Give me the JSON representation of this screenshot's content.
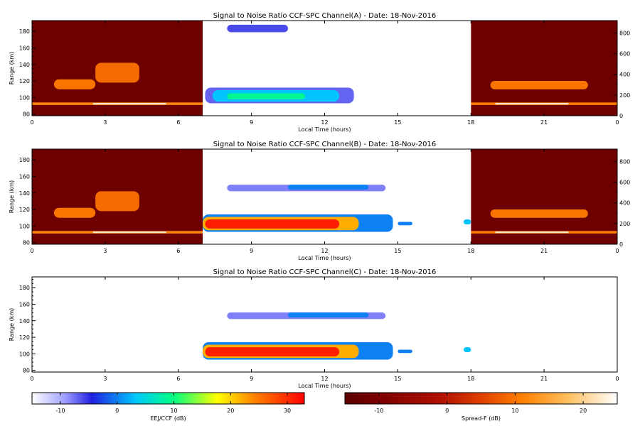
{
  "chart_data": {
    "type": "heatmap",
    "panels": [
      {
        "id": "a",
        "title": "Signal to Noise Ratio CCF-SPC Channel(A) - Date: 18-Nov-2016",
        "xlabel": "Local Time (hours)",
        "ylabel": "Range (km)",
        "x_ticks": [
          "0",
          "3",
          "6",
          "9",
          "12",
          "15",
          "18",
          "21",
          "0"
        ],
        "y_ticks": [
          "80",
          "100",
          "120",
          "140",
          "160",
          "180"
        ],
        "right_ticks": [
          "0",
          "200",
          "400",
          "600",
          "800"
        ],
        "xlim": [
          0,
          24
        ],
        "ylim": [
          78,
          193
        ],
        "right_ylim": [
          0,
          920
        ],
        "night_colorbar": "Spread-F (dB)",
        "features": [
          {
            "name": "night-base",
            "t0": 0,
            "t1": 7,
            "r0": 78,
            "r1": 193,
            "v": -12,
            "scale": "spreadf"
          },
          {
            "name": "night-base",
            "t0": 18,
            "t1": 24,
            "r0": 78,
            "r1": 193,
            "v": -12,
            "scale": "spreadf"
          },
          {
            "name": "night-band",
            "t0": 0,
            "t1": 7,
            "r0": 91,
            "r1": 94,
            "v": 12,
            "scale": "spreadf"
          },
          {
            "name": "night-band-core",
            "t0": 2.5,
            "t1": 5.5,
            "r0": 91.5,
            "r1": 93.5,
            "v": 22,
            "scale": "spreadf"
          },
          {
            "name": "night-band",
            "t0": 18,
            "t1": 24,
            "r0": 91,
            "r1": 94,
            "v": 11,
            "scale": "spreadf"
          },
          {
            "name": "night-band-core",
            "t0": 19,
            "t1": 22,
            "r0": 91.5,
            "r1": 93.5,
            "v": 22,
            "scale": "spreadf"
          },
          {
            "name": "spread-f-patch",
            "t0": 0.9,
            "t1": 2.6,
            "r0": 110,
            "r1": 122,
            "v": 10,
            "scale": "spreadf"
          },
          {
            "name": "spread-f-patch",
            "t0": 2.6,
            "t1": 4.4,
            "r0": 118,
            "r1": 142,
            "v": 9,
            "scale": "spreadf"
          },
          {
            "name": "spread-f-patch",
            "t0": 18.8,
            "t1": 22.8,
            "r0": 110,
            "r1": 120,
            "v": 10,
            "scale": "spreadf"
          },
          {
            "name": "day-bg",
            "t0": 7,
            "t1": 18,
            "r0": 78,
            "r1": 193,
            "v": -20,
            "scale": "eej"
          },
          {
            "name": "echo-150",
            "t0": 8.0,
            "t1": 10.5,
            "r0": 179,
            "r1": 188,
            "v": -6,
            "scale": "eej"
          },
          {
            "name": "eej-halo",
            "t0": 7.1,
            "t1": 13.2,
            "r0": 93,
            "r1": 112,
            "v": -7,
            "scale": "eej"
          },
          {
            "name": "eej-mid",
            "t0": 7.4,
            "t1": 12.6,
            "r0": 95,
            "r1": 109,
            "v": 3,
            "scale": "eej"
          },
          {
            "name": "eej-core",
            "t0": 8.0,
            "t1": 11.2,
            "r0": 98,
            "r1": 105,
            "v": 9,
            "scale": "eej"
          }
        ]
      },
      {
        "id": "b",
        "title": "Signal to Noise Ratio CCF-SPC Channel(B) - Date: 18-Nov-2016",
        "xlabel": "Local Time (hours)",
        "ylabel": "Range (km)",
        "x_ticks": [
          "0",
          "3",
          "6",
          "9",
          "12",
          "15",
          "18",
          "21",
          "0"
        ],
        "y_ticks": [
          "80",
          "100",
          "120",
          "140",
          "160",
          "180"
        ],
        "right_ticks": [
          "0",
          "200",
          "400",
          "600",
          "800"
        ],
        "xlim": [
          0,
          24
        ],
        "ylim": [
          78,
          193
        ],
        "right_ylim": [
          0,
          920
        ],
        "night_colorbar": "Spread-F (dB)",
        "features": [
          {
            "name": "night-base",
            "t0": 0,
            "t1": 7,
            "r0": 78,
            "r1": 193,
            "v": -12,
            "scale": "spreadf"
          },
          {
            "name": "night-base",
            "t0": 18,
            "t1": 24,
            "r0": 78,
            "r1": 193,
            "v": -12,
            "scale": "spreadf"
          },
          {
            "name": "night-band",
            "t0": 0,
            "t1": 7,
            "r0": 91,
            "r1": 94,
            "v": 12,
            "scale": "spreadf"
          },
          {
            "name": "night-band-core",
            "t0": 2.5,
            "t1": 5.5,
            "r0": 91.5,
            "r1": 93.5,
            "v": 22,
            "scale": "spreadf"
          },
          {
            "name": "night-band",
            "t0": 18,
            "t1": 24,
            "r0": 91,
            "r1": 94,
            "v": 11,
            "scale": "spreadf"
          },
          {
            "name": "night-band-core",
            "t0": 19,
            "t1": 22,
            "r0": 91.5,
            "r1": 93.5,
            "v": 22,
            "scale": "spreadf"
          },
          {
            "name": "spread-f-patch",
            "t0": 0.9,
            "t1": 2.6,
            "r0": 110,
            "r1": 122,
            "v": 10,
            "scale": "spreadf"
          },
          {
            "name": "spread-f-patch",
            "t0": 2.6,
            "t1": 4.4,
            "r0": 118,
            "r1": 142,
            "v": 9,
            "scale": "spreadf"
          },
          {
            "name": "spread-f-patch",
            "t0": 18.8,
            "t1": 22.8,
            "r0": 110,
            "r1": 120,
            "v": 10,
            "scale": "spreadf"
          },
          {
            "name": "day-bg",
            "t0": 7,
            "t1": 18,
            "r0": 78,
            "r1": 193,
            "v": -20,
            "scale": "eej"
          },
          {
            "name": "echo-150",
            "t0": 8.0,
            "t1": 14.5,
            "r0": 142,
            "r1": 150,
            "v": -8,
            "scale": "eej"
          },
          {
            "name": "echo-150",
            "t0": 10.5,
            "t1": 13.8,
            "r0": 144,
            "r1": 150,
            "v": 0,
            "scale": "eej"
          },
          {
            "name": "eej-halo",
            "t0": 7.0,
            "t1": 14.8,
            "r0": 93,
            "r1": 114,
            "v": 0,
            "scale": "eej"
          },
          {
            "name": "eej-mid",
            "t0": 7.0,
            "t1": 13.4,
            "r0": 95,
            "r1": 111,
            "v": 22,
            "scale": "eej"
          },
          {
            "name": "eej-core",
            "t0": 7.1,
            "t1": 12.6,
            "r0": 97,
            "r1": 108,
            "v": 31,
            "scale": "eej"
          },
          {
            "name": "eej-tail",
            "t0": 15.0,
            "t1": 15.6,
            "r0": 101,
            "r1": 105,
            "v": 0,
            "scale": "eej"
          },
          {
            "name": "eej-tail",
            "t0": 17.7,
            "t1": 18.0,
            "r0": 102,
            "r1": 108,
            "v": 3,
            "scale": "eej"
          }
        ]
      },
      {
        "id": "c",
        "title": "Signal to Noise Ratio CCF-SPC Channel(C) - Date: 18-Nov-2016",
        "xlabel": "Local Time (hours)",
        "ylabel": "Range (km)",
        "x_ticks": [
          "0",
          "3",
          "6",
          "9",
          "12",
          "15",
          "18",
          "21",
          "0"
        ],
        "y_ticks": [
          "80",
          "100",
          "120",
          "140",
          "160",
          "180"
        ],
        "right_ticks": [],
        "xlim": [
          0,
          24
        ],
        "ylim": [
          78,
          193
        ],
        "right_ylim": [
          0,
          920
        ],
        "features": [
          {
            "name": "echo-150",
            "t0": 8.0,
            "t1": 14.5,
            "r0": 142,
            "r1": 150,
            "v": -8,
            "scale": "eej"
          },
          {
            "name": "echo-150",
            "t0": 10.5,
            "t1": 13.8,
            "r0": 144,
            "r1": 150,
            "v": 0,
            "scale": "eej"
          },
          {
            "name": "eej-halo",
            "t0": 7.0,
            "t1": 14.8,
            "r0": 93,
            "r1": 114,
            "v": 0,
            "scale": "eej"
          },
          {
            "name": "eej-mid",
            "t0": 7.0,
            "t1": 13.4,
            "r0": 95,
            "r1": 111,
            "v": 22,
            "scale": "eej"
          },
          {
            "name": "eej-core",
            "t0": 7.1,
            "t1": 12.6,
            "r0": 97,
            "r1": 108,
            "v": 31,
            "scale": "eej"
          },
          {
            "name": "eej-tail",
            "t0": 15.0,
            "t1": 15.6,
            "r0": 101,
            "r1": 105,
            "v": 0,
            "scale": "eej"
          },
          {
            "name": "eej-tail",
            "t0": 17.7,
            "t1": 18.0,
            "r0": 102,
            "r1": 108,
            "v": 3,
            "scale": "eej"
          }
        ]
      }
    ],
    "colorbars": [
      {
        "id": "eej",
        "label": "EEJ/CCF (dB)",
        "range": [
          -15,
          33
        ],
        "ticks": [
          "-10",
          "0",
          "10",
          "20",
          "30"
        ],
        "stops": [
          [
            "#ffffff",
            0.0
          ],
          [
            "#a0a0ff",
            0.12
          ],
          [
            "#2020e0",
            0.22
          ],
          [
            "#00c8ff",
            0.38
          ],
          [
            "#00ff80",
            0.52
          ],
          [
            "#ffff00",
            0.68
          ],
          [
            "#ff8000",
            0.82
          ],
          [
            "#ff0000",
            1.0
          ]
        ]
      },
      {
        "id": "spreadf",
        "label": "Spread-F (dB)",
        "range": [
          -15,
          25
        ],
        "ticks": [
          "-10",
          "0",
          "10",
          "20"
        ],
        "stops": [
          [
            "#5a0000",
            0.0
          ],
          [
            "#7a0000",
            0.12
          ],
          [
            "#b01000",
            0.35
          ],
          [
            "#e04000",
            0.5
          ],
          [
            "#ff8000",
            0.65
          ],
          [
            "#ffc060",
            0.82
          ],
          [
            "#ffffff",
            1.0
          ]
        ]
      }
    ]
  }
}
